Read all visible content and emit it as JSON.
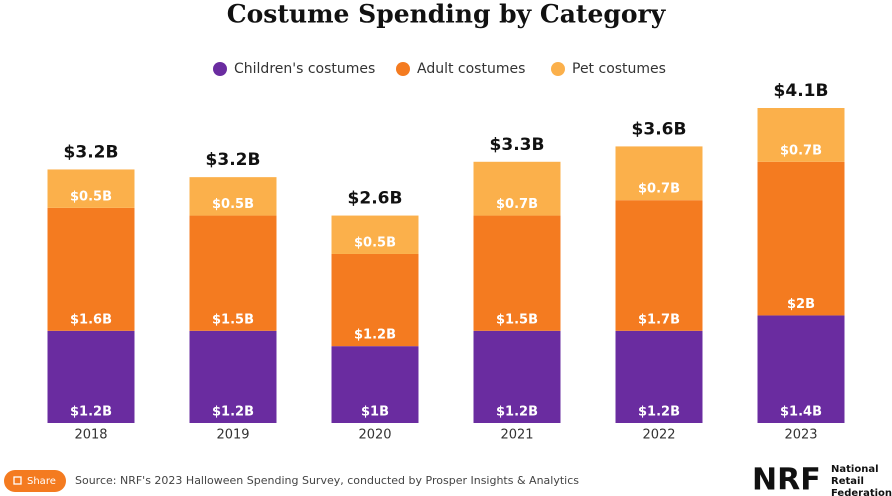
{
  "chart_data": {
    "type": "stacked-bar",
    "title": "Costume Spending by Category",
    "categories": [
      "2018",
      "2019",
      "2020",
      "2021",
      "2022",
      "2023"
    ],
    "series": [
      {
        "name": "Children's costumes",
        "color": "#6a2ca0",
        "values": [
          1.2,
          1.2,
          1,
          1.2,
          1.2,
          1.4
        ],
        "value_labels": [
          "$1.2B",
          "$1.2B",
          "$1B",
          "$1.2B",
          "$1.2B",
          "$1.4B"
        ]
      },
      {
        "name": "Adult costumes",
        "color": "#f47b20",
        "values": [
          1.6,
          1.5,
          1.2,
          1.5,
          1.7,
          2
        ],
        "value_labels": [
          "$1.6B",
          "$1.5B",
          "$1.2B",
          "$1.5B",
          "$1.7B",
          "$2B"
        ]
      },
      {
        "name": "Pet costumes",
        "color": "#fbb04b",
        "values": [
          0.5,
          0.5,
          0.5,
          0.7,
          0.7,
          0.7
        ],
        "value_labels": [
          "$0.5B",
          "$0.5B",
          "$0.5B",
          "$0.7B",
          "$0.7B",
          "$0.7B"
        ]
      }
    ],
    "totals": {
      "values": [
        3.2,
        3.2,
        2.6,
        3.3,
        3.6,
        4.1
      ],
      "value_labels": [
        "$3.2B",
        "$3.2B",
        "$2.6B",
        "$3.3B",
        "$3.6B",
        "$4.1B"
      ]
    }
  },
  "footer": {
    "share": "Share",
    "source": "Source: NRF's 2023 Halloween Spending Survey, conducted by Prosper Insights & Analytics",
    "logo": "NRF",
    "logo_lines": [
      "National",
      "Retail",
      "Federation"
    ]
  }
}
